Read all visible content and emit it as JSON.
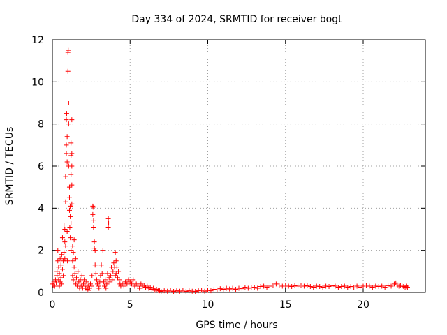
{
  "chart_data": {
    "type": "scatter",
    "title": "Day 334 of 2024, SRMTID for receiver bogt",
    "xlabel": "GPS time / hours",
    "ylabel": "SRMTID / TECUs",
    "xlim": [
      0,
      24
    ],
    "ylim": [
      0,
      12
    ],
    "xticks": [
      0,
      5,
      10,
      15,
      20
    ],
    "yticks": [
      0,
      2,
      4,
      6,
      8,
      10,
      12
    ],
    "x_tick_labels": [
      "0",
      "5",
      "10",
      "15",
      "20"
    ],
    "y_tick_labels": [
      "0",
      "2",
      "4",
      "6",
      "8",
      "10",
      "12"
    ],
    "grid": true,
    "marker": "+",
    "color": "#ff0000",
    "series": [
      {
        "name": "SRMTID",
        "points": [
          [
            0.0,
            0.4
          ],
          [
            0.05,
            0.35
          ],
          [
            0.1,
            0.5
          ],
          [
            0.15,
            0.3
          ],
          [
            0.2,
            0.6
          ],
          [
            0.25,
            0.45
          ],
          [
            0.3,
            0.8
          ],
          [
            0.3,
            1.0
          ],
          [
            0.35,
            1.5
          ],
          [
            0.35,
            2.0
          ],
          [
            0.4,
            0.6
          ],
          [
            0.4,
            1.2
          ],
          [
            0.45,
            0.3
          ],
          [
            0.45,
            0.9
          ],
          [
            0.5,
            1.6
          ],
          [
            0.5,
            0.5
          ],
          [
            0.55,
            1.3
          ],
          [
            0.55,
            0.7
          ],
          [
            0.6,
            1.8
          ],
          [
            0.6,
            0.4
          ],
          [
            0.65,
            1.1
          ],
          [
            0.65,
            2.6
          ],
          [
            0.7,
            1.5
          ],
          [
            0.7,
            0.8
          ],
          [
            0.75,
            1.9
          ],
          [
            0.75,
            3.2
          ],
          [
            0.8,
            1.6
          ],
          [
            0.8,
            2.4
          ],
          [
            0.8,
            3.0
          ],
          [
            0.85,
            2.2
          ],
          [
            0.85,
            4.3
          ],
          [
            0.85,
            5.5
          ],
          [
            0.9,
            6.6
          ],
          [
            0.9,
            7.0
          ],
          [
            0.9,
            8.2
          ],
          [
            0.92,
            8.5
          ],
          [
            0.95,
            7.4
          ],
          [
            0.95,
            6.2
          ],
          [
            0.95,
            2.9
          ],
          [
            0.97,
            1.5
          ],
          [
            1.0,
            11.4
          ],
          [
            1.02,
            11.5
          ],
          [
            1.0,
            10.5
          ],
          [
            1.05,
            9.0
          ],
          [
            1.05,
            8.0
          ],
          [
            1.05,
            6.0
          ],
          [
            1.1,
            5.0
          ],
          [
            1.1,
            4.5
          ],
          [
            1.1,
            3.9
          ],
          [
            1.12,
            3.1
          ],
          [
            1.15,
            2.6
          ],
          [
            1.15,
            4.1
          ],
          [
            1.15,
            3.6
          ],
          [
            1.2,
            7.1
          ],
          [
            1.2,
            6.5
          ],
          [
            1.2,
            5.6
          ],
          [
            1.2,
            3.3
          ],
          [
            1.2,
            2.0
          ],
          [
            1.25,
            8.2
          ],
          [
            1.25,
            6.6
          ],
          [
            1.25,
            6.0
          ],
          [
            1.25,
            5.1
          ],
          [
            1.25,
            4.2
          ],
          [
            1.3,
            0.8
          ],
          [
            1.3,
            1.5
          ],
          [
            1.3,
            2.2
          ],
          [
            1.35,
            1.9
          ],
          [
            1.35,
            0.6
          ],
          [
            1.4,
            1.2
          ],
          [
            1.4,
            2.5
          ],
          [
            1.45,
            0.9
          ],
          [
            1.5,
            0.4
          ],
          [
            1.5,
            1.6
          ],
          [
            1.55,
            0.7
          ],
          [
            1.6,
            0.3
          ],
          [
            1.65,
            1.0
          ],
          [
            1.7,
            0.5
          ],
          [
            1.75,
            0.2
          ],
          [
            1.8,
            0.6
          ],
          [
            1.85,
            0.3
          ],
          [
            1.9,
            0.8
          ],
          [
            1.95,
            0.2
          ],
          [
            2.0,
            0.4
          ],
          [
            2.05,
            0.6
          ],
          [
            2.1,
            0.3
          ],
          [
            2.15,
            0.2
          ],
          [
            2.2,
            0.5
          ],
          [
            2.25,
            0.15
          ],
          [
            2.3,
            0.3
          ],
          [
            2.35,
            0.1
          ],
          [
            2.4,
            0.2
          ],
          [
            2.45,
            0.4
          ],
          [
            2.5,
            0.3
          ],
          [
            2.55,
            0.8
          ],
          [
            2.6,
            4.1
          ],
          [
            2.62,
            4.05
          ],
          [
            2.6,
            3.7
          ],
          [
            2.65,
            3.4
          ],
          [
            2.65,
            3.1
          ],
          [
            2.7,
            2.4
          ],
          [
            2.7,
            2.1
          ],
          [
            2.75,
            2.0
          ],
          [
            2.75,
            1.3
          ],
          [
            2.8,
            0.9
          ],
          [
            2.85,
            0.6
          ],
          [
            2.9,
            0.4
          ],
          [
            2.95,
            0.3
          ],
          [
            3.0,
            0.2
          ],
          [
            3.05,
            0.5
          ],
          [
            3.1,
            0.8
          ],
          [
            3.15,
            1.3
          ],
          [
            3.2,
            0.9
          ],
          [
            3.25,
            2.0
          ],
          [
            3.3,
            0.5
          ],
          [
            3.35,
            0.3
          ],
          [
            3.4,
            0.6
          ],
          [
            3.45,
            0.2
          ],
          [
            3.5,
            0.4
          ],
          [
            3.55,
            0.9
          ],
          [
            3.6,
            3.5
          ],
          [
            3.6,
            3.1
          ],
          [
            3.62,
            3.3
          ],
          [
            3.65,
            0.7
          ],
          [
            3.7,
            0.5
          ],
          [
            3.75,
            0.8
          ],
          [
            3.8,
            1.2
          ],
          [
            3.85,
            0.6
          ],
          [
            3.9,
            1.0
          ],
          [
            3.95,
            1.4
          ],
          [
            4.0,
            1.2
          ],
          [
            4.05,
            0.8
          ],
          [
            4.05,
            1.9
          ],
          [
            4.1,
            1.5
          ],
          [
            4.1,
            0.9
          ],
          [
            4.15,
            1.2
          ],
          [
            4.2,
            0.7
          ],
          [
            4.25,
            1.0
          ],
          [
            4.3,
            0.6
          ],
          [
            4.35,
            0.4
          ],
          [
            4.4,
            0.3
          ],
          [
            4.5,
            0.4
          ],
          [
            4.6,
            0.3
          ],
          [
            4.7,
            0.5
          ],
          [
            4.8,
            0.4
          ],
          [
            4.9,
            0.6
          ],
          [
            5.0,
            0.5
          ],
          [
            5.1,
            0.4
          ],
          [
            5.2,
            0.6
          ],
          [
            5.3,
            0.3
          ],
          [
            5.4,
            0.4
          ],
          [
            5.5,
            0.3
          ],
          [
            5.6,
            0.2
          ],
          [
            5.7,
            0.4
          ],
          [
            5.8,
            0.3
          ],
          [
            5.9,
            0.35
          ],
          [
            6.0,
            0.25
          ],
          [
            6.1,
            0.3
          ],
          [
            6.2,
            0.2
          ],
          [
            6.3,
            0.25
          ],
          [
            6.4,
            0.15
          ],
          [
            6.5,
            0.2
          ],
          [
            6.6,
            0.1
          ],
          [
            6.7,
            0.15
          ],
          [
            6.8,
            0.1
          ],
          [
            6.9,
            0.08
          ],
          [
            7.0,
            0.05
          ],
          [
            7.2,
            0.08
          ],
          [
            7.4,
            0.06
          ],
          [
            7.6,
            0.1
          ],
          [
            7.8,
            0.05
          ],
          [
            8.0,
            0.08
          ],
          [
            8.2,
            0.06
          ],
          [
            8.4,
            0.1
          ],
          [
            8.6,
            0.05
          ],
          [
            8.8,
            0.08
          ],
          [
            9.0,
            0.06
          ],
          [
            9.2,
            0.05
          ],
          [
            9.4,
            0.08
          ],
          [
            9.6,
            0.1
          ],
          [
            9.8,
            0.06
          ],
          [
            10.0,
            0.1
          ],
          [
            10.2,
            0.08
          ],
          [
            10.4,
            0.15
          ],
          [
            10.6,
            0.12
          ],
          [
            10.8,
            0.18
          ],
          [
            11.0,
            0.15
          ],
          [
            11.2,
            0.2
          ],
          [
            11.4,
            0.16
          ],
          [
            11.6,
            0.2
          ],
          [
            11.8,
            0.15
          ],
          [
            12.0,
            0.2
          ],
          [
            12.2,
            0.18
          ],
          [
            12.4,
            0.25
          ],
          [
            12.6,
            0.2
          ],
          [
            12.8,
            0.22
          ],
          [
            13.0,
            0.25
          ],
          [
            13.2,
            0.2
          ],
          [
            13.4,
            0.28
          ],
          [
            13.6,
            0.3
          ],
          [
            13.8,
            0.25
          ],
          [
            14.0,
            0.3
          ],
          [
            14.2,
            0.35
          ],
          [
            14.4,
            0.4
          ],
          [
            14.6,
            0.35
          ],
          [
            14.8,
            0.3
          ],
          [
            15.0,
            0.35
          ],
          [
            15.2,
            0.3
          ],
          [
            15.4,
            0.28
          ],
          [
            15.6,
            0.32
          ],
          [
            15.8,
            0.3
          ],
          [
            16.0,
            0.35
          ],
          [
            16.2,
            0.3
          ],
          [
            16.4,
            0.32
          ],
          [
            16.6,
            0.28
          ],
          [
            16.8,
            0.25
          ],
          [
            17.0,
            0.3
          ],
          [
            17.2,
            0.28
          ],
          [
            17.4,
            0.25
          ],
          [
            17.6,
            0.3
          ],
          [
            17.8,
            0.28
          ],
          [
            18.0,
            0.32
          ],
          [
            18.2,
            0.3
          ],
          [
            18.4,
            0.25
          ],
          [
            18.6,
            0.28
          ],
          [
            18.8,
            0.3
          ],
          [
            19.0,
            0.25
          ],
          [
            19.2,
            0.28
          ],
          [
            19.4,
            0.22
          ],
          [
            19.6,
            0.3
          ],
          [
            19.8,
            0.25
          ],
          [
            20.0,
            0.3
          ],
          [
            20.2,
            0.35
          ],
          [
            20.4,
            0.3
          ],
          [
            20.6,
            0.25
          ],
          [
            20.8,
            0.3
          ],
          [
            21.0,
            0.28
          ],
          [
            21.2,
            0.3
          ],
          [
            21.4,
            0.25
          ],
          [
            21.6,
            0.32
          ],
          [
            21.8,
            0.3
          ],
          [
            22.0,
            0.4
          ],
          [
            22.1,
            0.45
          ],
          [
            22.2,
            0.35
          ],
          [
            22.3,
            0.3
          ],
          [
            22.4,
            0.35
          ],
          [
            22.5,
            0.3
          ],
          [
            22.6,
            0.28
          ],
          [
            22.7,
            0.25
          ],
          [
            22.8,
            0.3
          ],
          [
            22.85,
            0.25
          ]
        ]
      }
    ]
  }
}
